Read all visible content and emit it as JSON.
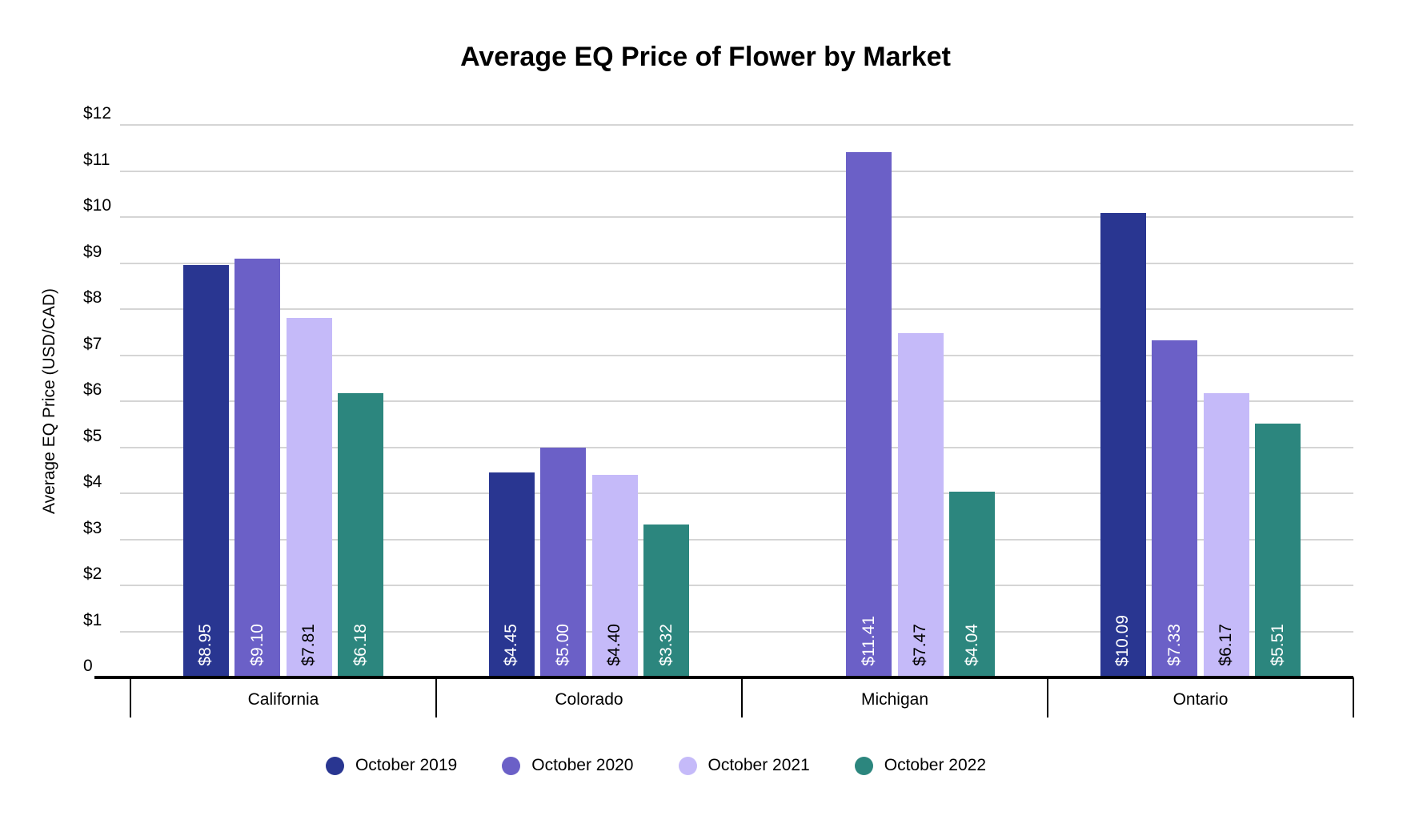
{
  "title": "Average EQ Price of Flower by Market",
  "chart_data": {
    "type": "bar",
    "categories": [
      "California",
      "Colorado",
      "Michigan",
      "Ontario"
    ],
    "series": [
      {
        "name": "October 2019",
        "color": "#293691",
        "label_color": "#ffffff",
        "values": [
          8.95,
          4.45,
          null,
          10.09
        ],
        "labels": [
          "$8.95",
          "$4.45",
          null,
          "$10.09"
        ]
      },
      {
        "name": "October 2020",
        "color": "#6b60c7",
        "label_color": "#ffffff",
        "values": [
          9.1,
          5.0,
          11.41,
          7.33
        ],
        "labels": [
          "$9.10",
          "$5.00",
          "$11.41",
          "$7.33"
        ]
      },
      {
        "name": "October 2021",
        "color": "#c5baf9",
        "label_color": "#000000",
        "values": [
          7.81,
          4.4,
          7.47,
          6.17
        ],
        "labels": [
          "$7.81",
          "$4.40",
          "$7.47",
          "$6.17"
        ]
      },
      {
        "name": "October 2022",
        "color": "#2c867e",
        "label_color": "#ffffff",
        "values": [
          6.18,
          3.32,
          4.04,
          5.51
        ],
        "labels": [
          "$6.18",
          "$3.32",
          "$4.04",
          "$5.51"
        ]
      }
    ],
    "ylabel": "Average EQ Price (USD/CAD)",
    "ylim": [
      0,
      12
    ],
    "yticks": [
      {
        "value": 12,
        "label": "$12"
      },
      {
        "value": 11,
        "label": "$11"
      },
      {
        "value": 10,
        "label": "$10"
      },
      {
        "value": 9,
        "label": "$9"
      },
      {
        "value": 8,
        "label": "$8"
      },
      {
        "value": 7,
        "label": "$7"
      },
      {
        "value": 6,
        "label": "$6"
      },
      {
        "value": 5,
        "label": "$5"
      },
      {
        "value": 4,
        "label": "$4"
      },
      {
        "value": 3,
        "label": "$3"
      },
      {
        "value": 2,
        "label": "$2"
      },
      {
        "value": 1,
        "label": "$1"
      },
      {
        "value": 0,
        "label": "0"
      }
    ],
    "grid": true,
    "legend_position": "bottom"
  }
}
